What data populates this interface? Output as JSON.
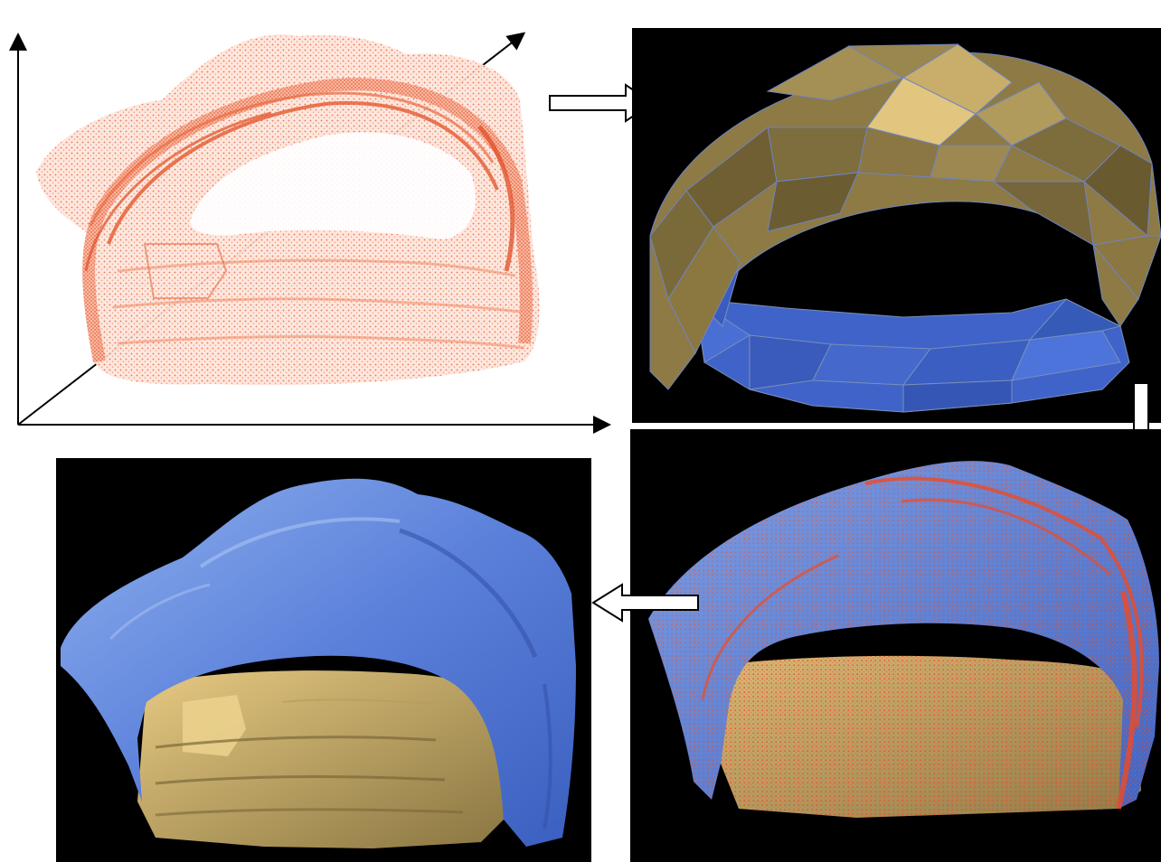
{
  "figure": {
    "panels": [
      {
        "id": "point-cloud",
        "kind": "image",
        "background": "#ffffff",
        "accent": "#e8542a"
      },
      {
        "id": "coarse-mesh",
        "kind": "image",
        "background": "#000000",
        "roof": "#8d7a45",
        "floor": "#3f63c8"
      },
      {
        "id": "overlay",
        "kind": "image",
        "background": "#000000",
        "surface": "#5f86d8",
        "points": "#ef4a24"
      },
      {
        "id": "fine-mesh",
        "kind": "image",
        "background": "#000000",
        "roof": "#4f78d6",
        "floor": "#c8ae66"
      }
    ],
    "arrows": [
      {
        "id": "arrow-right",
        "direction": "right"
      },
      {
        "id": "arrow-down",
        "direction": "down"
      },
      {
        "id": "arrow-left",
        "direction": "left"
      }
    ],
    "axes": {
      "count": 3,
      "color": "#000000"
    }
  }
}
